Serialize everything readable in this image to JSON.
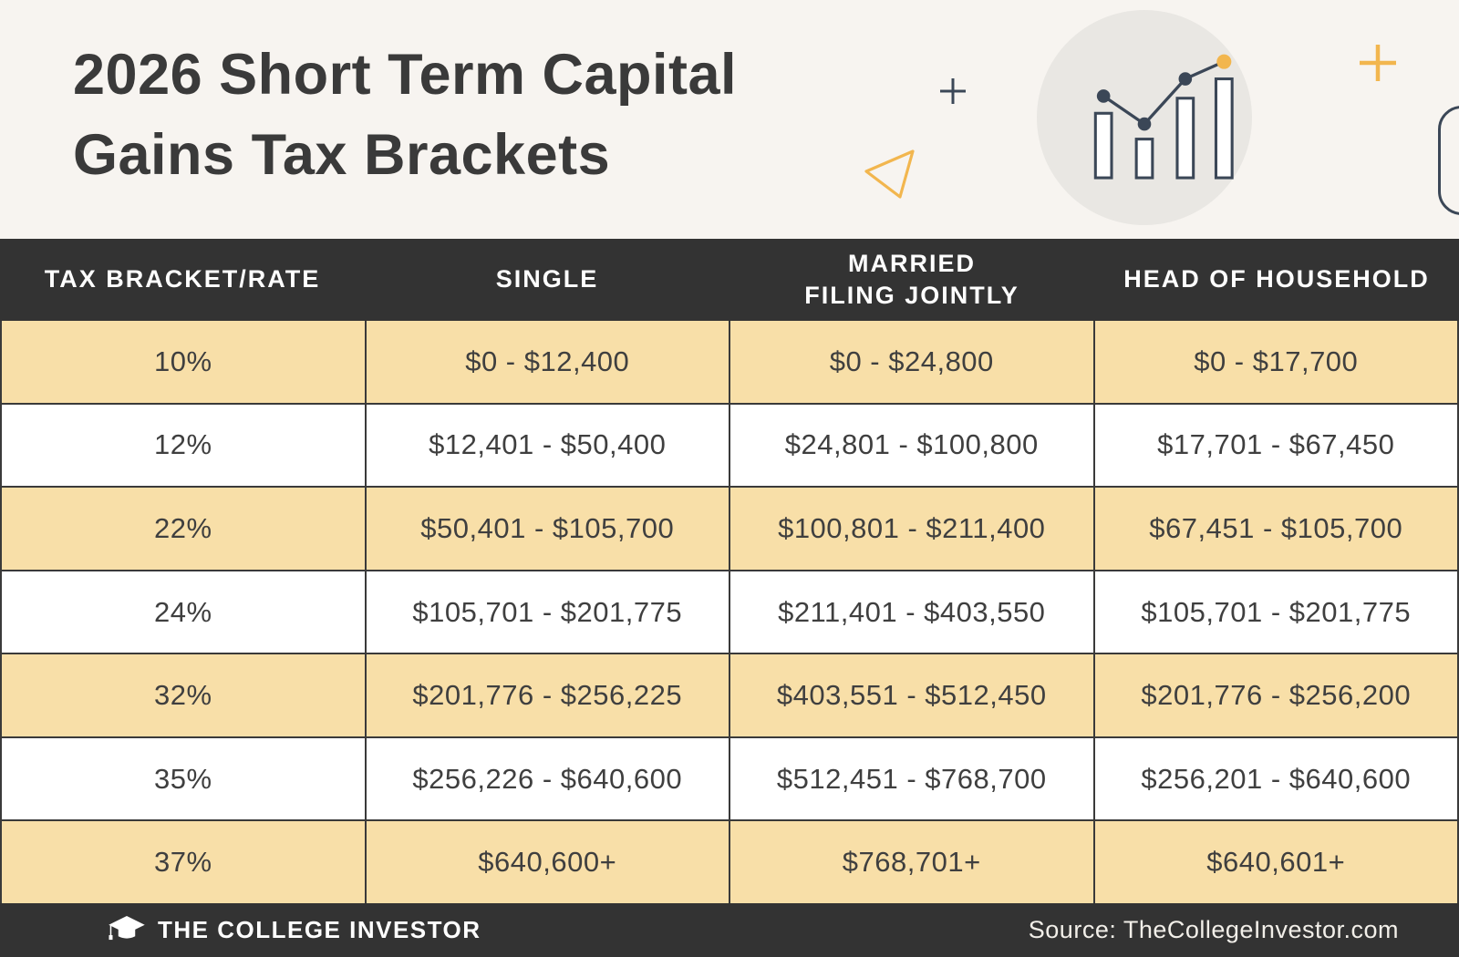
{
  "page": {
    "title_line1": "2026 Short Term Capital",
    "title_line2": "Gains Tax Brackets"
  },
  "table": {
    "headers": [
      "TAX BRACKET/RATE",
      "SINGLE",
      "MARRIED\nFILING JOINTLY",
      "HEAD OF HOUSEHOLD"
    ],
    "rows": [
      [
        "10%",
        "$0 - $12,400",
        "$0 - $24,800",
        "$0 - $17,700"
      ],
      [
        "12%",
        "$12,401 - $50,400",
        "$24,801 - $100,800",
        "$17,701 - $67,450"
      ],
      [
        "22%",
        "$50,401 - $105,700",
        "$100,801 - $211,400",
        "$67,451 - $105,700"
      ],
      [
        "24%",
        "$105,701 - $201,775",
        "$211,401 - $403,550",
        "$105,701 - $201,775"
      ],
      [
        "32%",
        "$201,776 - $256,225",
        "$403,551 - $512,450",
        "$201,776 - $256,200"
      ],
      [
        "35%",
        "$256,226 - $640,600",
        "$512,451 - $768,700",
        "$256,201 - $640,600"
      ],
      [
        "37%",
        "$640,600+",
        "$768,701+",
        "$640,601+"
      ]
    ]
  },
  "footer": {
    "brand": "THE COLLEGE INVESTOR",
    "source": "Source: TheCollegeInvestor.com"
  },
  "icons": {
    "hero": [
      "plus-icon-small",
      "triangle-icon",
      "bar-chart-circle-icon",
      "plus-icon-large",
      "rounded-rectangle-decoration"
    ],
    "footer": [
      "graduation-cap-icon"
    ]
  },
  "colors": {
    "background": "#f7f4f0",
    "header_footer_dark": "#333333",
    "row_tan": "#f8dfa8",
    "row_white": "#ffffff",
    "text_dark": "#3f3f3f",
    "accent_yellow": "#f2b64e",
    "accent_navy": "#3b4757",
    "circle_gray": "#e9e7e3"
  },
  "chart_data": {
    "type": "table",
    "title": "2026 Short Term Capital Gains Tax Brackets",
    "columns": [
      "Tax Bracket/Rate",
      "Single",
      "Married Filing Jointly",
      "Head of Household"
    ],
    "rows": [
      [
        "10%",
        "$0 - $12,400",
        "$0 - $24,800",
        "$0 - $17,700"
      ],
      [
        "12%",
        "$12,401 - $50,400",
        "$24,801 - $100,800",
        "$17,701 - $67,450"
      ],
      [
        "22%",
        "$50,401 - $105,700",
        "$100,801 - $211,400",
        "$67,451 - $105,700"
      ],
      [
        "24%",
        "$105,701 - $201,775",
        "$211,401 - $403,550",
        "$105,701 - $201,775"
      ],
      [
        "32%",
        "$201,776 - $256,225",
        "$403,551 - $512,450",
        "$201,776 - $256,200"
      ],
      [
        "35%",
        "$256,226 - $640,600",
        "$512,451 - $768,700",
        "$256,201 - $640,600"
      ],
      [
        "37%",
        "$640,600+",
        "$768,701+",
        "$640,601+"
      ]
    ],
    "source": "Source: TheCollegeInvestor.com",
    "layout_hints": {
      "alternating_row_colors": [
        "tan",
        "white"
      ],
      "header_style": "dark bar, white uppercase text"
    }
  }
}
